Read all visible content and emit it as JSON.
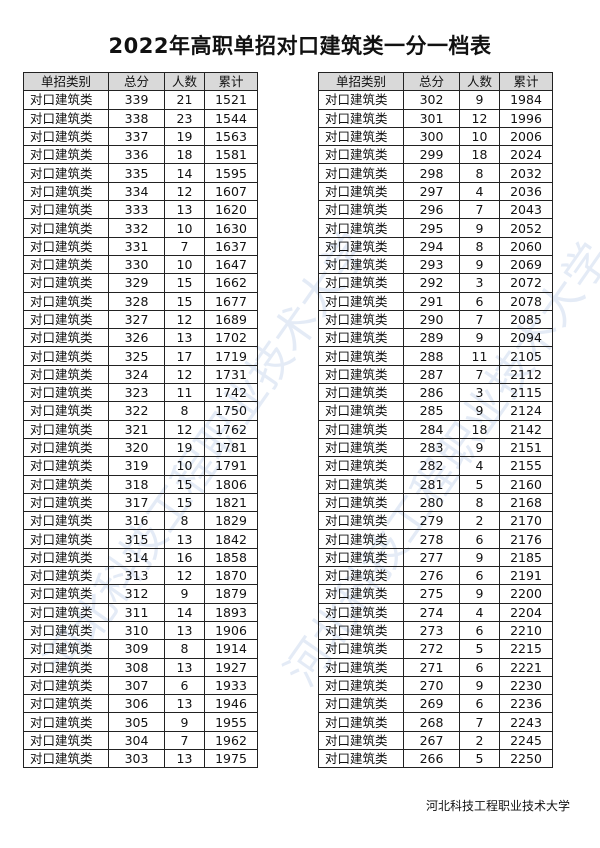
{
  "title": "2022年高职单招对口建筑类一分一档表",
  "headers": [
    "单招类别",
    "总分",
    "人数",
    "累计"
  ],
  "category": "对口建筑类",
  "left_rows": [
    [
      339,
      21,
      1521
    ],
    [
      338,
      23,
      1544
    ],
    [
      337,
      19,
      1563
    ],
    [
      336,
      18,
      1581
    ],
    [
      335,
      14,
      1595
    ],
    [
      334,
      12,
      1607
    ],
    [
      333,
      13,
      1620
    ],
    [
      332,
      10,
      1630
    ],
    [
      331,
      7,
      1637
    ],
    [
      330,
      10,
      1647
    ],
    [
      329,
      15,
      1662
    ],
    [
      328,
      15,
      1677
    ],
    [
      327,
      12,
      1689
    ],
    [
      326,
      13,
      1702
    ],
    [
      325,
      17,
      1719
    ],
    [
      324,
      12,
      1731
    ],
    [
      323,
      11,
      1742
    ],
    [
      322,
      8,
      1750
    ],
    [
      321,
      12,
      1762
    ],
    [
      320,
      19,
      1781
    ],
    [
      319,
      10,
      1791
    ],
    [
      318,
      15,
      1806
    ],
    [
      317,
      15,
      1821
    ],
    [
      316,
      8,
      1829
    ],
    [
      315,
      13,
      1842
    ],
    [
      314,
      16,
      1858
    ],
    [
      313,
      12,
      1870
    ],
    [
      312,
      9,
      1879
    ],
    [
      311,
      14,
      1893
    ],
    [
      310,
      13,
      1906
    ],
    [
      309,
      8,
      1914
    ],
    [
      308,
      13,
      1927
    ],
    [
      307,
      6,
      1933
    ],
    [
      306,
      13,
      1946
    ],
    [
      305,
      9,
      1955
    ],
    [
      304,
      7,
      1962
    ],
    [
      303,
      13,
      1975
    ]
  ],
  "right_rows": [
    [
      302,
      9,
      1984
    ],
    [
      301,
      12,
      1996
    ],
    [
      300,
      10,
      2006
    ],
    [
      299,
      18,
      2024
    ],
    [
      298,
      8,
      2032
    ],
    [
      297,
      4,
      2036
    ],
    [
      296,
      7,
      2043
    ],
    [
      295,
      9,
      2052
    ],
    [
      294,
      8,
      2060
    ],
    [
      293,
      9,
      2069
    ],
    [
      292,
      3,
      2072
    ],
    [
      291,
      6,
      2078
    ],
    [
      290,
      7,
      2085
    ],
    [
      289,
      9,
      2094
    ],
    [
      288,
      11,
      2105
    ],
    [
      287,
      7,
      2112
    ],
    [
      286,
      3,
      2115
    ],
    [
      285,
      9,
      2124
    ],
    [
      284,
      18,
      2142
    ],
    [
      283,
      9,
      2151
    ],
    [
      282,
      4,
      2155
    ],
    [
      281,
      5,
      2160
    ],
    [
      280,
      8,
      2168
    ],
    [
      279,
      2,
      2170
    ],
    [
      278,
      6,
      2176
    ],
    [
      277,
      9,
      2185
    ],
    [
      276,
      6,
      2191
    ],
    [
      275,
      9,
      2200
    ],
    [
      274,
      4,
      2204
    ],
    [
      273,
      6,
      2210
    ],
    [
      272,
      5,
      2215
    ],
    [
      271,
      6,
      2221
    ],
    [
      270,
      9,
      2230
    ],
    [
      269,
      6,
      2236
    ],
    [
      268,
      7,
      2243
    ],
    [
      267,
      2,
      2245
    ],
    [
      266,
      5,
      2250
    ]
  ],
  "footer": "河北科技工程职业技术大学",
  "watermark": "河北科技工程职业技术大学"
}
